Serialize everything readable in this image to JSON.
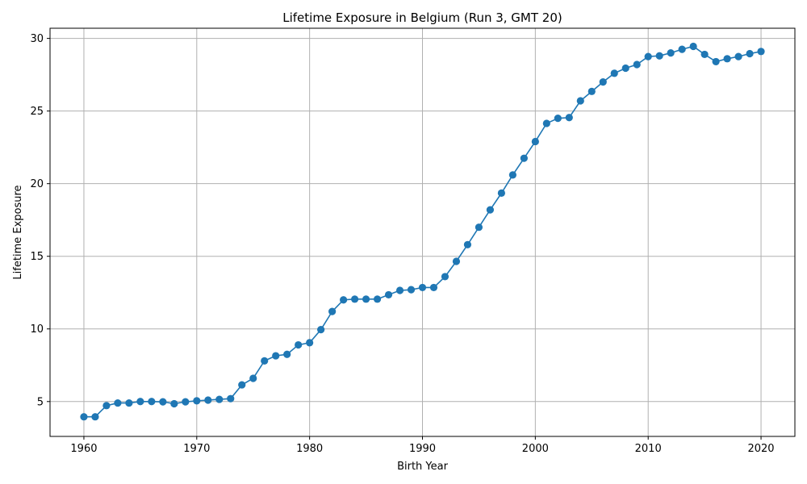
{
  "chart_data": {
    "type": "line",
    "title": "Lifetime Exposure in Belgium (Run 3, GMT 20)",
    "xlabel": "Birth Year",
    "ylabel": "Lifetime Exposure",
    "xlim": [
      1957,
      2023
    ],
    "ylim": [
      2.6,
      30.7
    ],
    "xticks": [
      1960,
      1970,
      1980,
      1990,
      2000,
      2010,
      2020
    ],
    "yticks": [
      5,
      10,
      15,
      20,
      25,
      30
    ],
    "grid": true,
    "color": "#1f77b4",
    "x": [
      1960,
      1961,
      1962,
      1963,
      1964,
      1965,
      1966,
      1967,
      1968,
      1969,
      1970,
      1971,
      1972,
      1973,
      1974,
      1975,
      1976,
      1977,
      1978,
      1979,
      1980,
      1981,
      1982,
      1983,
      1984,
      1985,
      1986,
      1987,
      1988,
      1989,
      1990,
      1991,
      1992,
      1993,
      1994,
      1995,
      1996,
      1997,
      1998,
      1999,
      2000,
      2001,
      2002,
      2003,
      2004,
      2005,
      2006,
      2007,
      2008,
      2009,
      2010,
      2011,
      2012,
      2013,
      2014,
      2015,
      2016,
      2017,
      2018,
      2019,
      2020
    ],
    "y": [
      3.95,
      3.95,
      4.72,
      4.9,
      4.9,
      5.0,
      5.0,
      4.98,
      4.85,
      4.98,
      5.05,
      5.1,
      5.15,
      5.2,
      6.15,
      6.6,
      7.8,
      8.15,
      8.25,
      8.9,
      9.05,
      9.95,
      11.2,
      12.0,
      12.05,
      12.05,
      12.05,
      12.35,
      12.65,
      12.7,
      12.85,
      12.85,
      13.6,
      14.65,
      15.8,
      17.0,
      18.2,
      19.35,
      20.6,
      21.75,
      22.9,
      24.15,
      24.5,
      24.55,
      25.7,
      26.35,
      27.0,
      27.6,
      27.95,
      28.2,
      28.75,
      28.8,
      29.0,
      29.25,
      29.45,
      28.9,
      28.4,
      28.6,
      28.75,
      28.95,
      29.1
    ]
  }
}
